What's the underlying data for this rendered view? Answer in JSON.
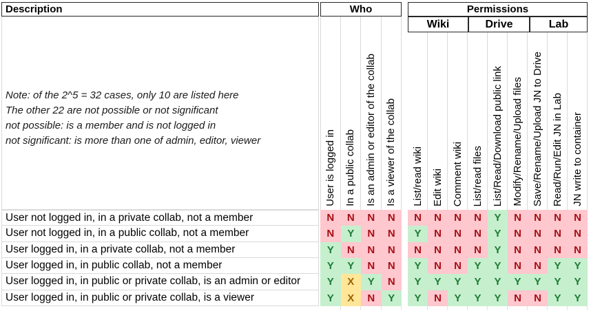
{
  "headers": {
    "description": "Description",
    "who": "Who",
    "permissions": "Permissions",
    "who_columns": [
      "User is logged in",
      "In a public collab",
      "Is an admin or editor of the collab",
      "Is a viewer of the collab"
    ],
    "groups": [
      {
        "label": "Wiki",
        "columns": [
          "List/read wiki",
          "Edit wiki",
          "Comment wiki"
        ]
      },
      {
        "label": "Drive",
        "columns": [
          "List/read files",
          "List/Read/Download public link",
          "Modify/Rename/Upload files"
        ]
      },
      {
        "label": "Lab",
        "columns": [
          "Save/Rename/Upload JN to Drive",
          "Read/Run/Edit JN in Lab",
          "JN write to container"
        ]
      }
    ]
  },
  "note_lines": [
    "Note: of the 2^5 = 32 cases, only 10 are listed here",
    "The other 22 are not possible or not significant",
    "not possible: is a member and is not logged in",
    "not significant: is more than one of admin, editor, viewer"
  ],
  "rows": [
    {
      "description": "User not logged in, in a private collab, not a member",
      "who": [
        "N",
        "N",
        "N",
        "N"
      ],
      "permissions": [
        "N",
        "N",
        "N",
        "N",
        "Y",
        "N",
        "N",
        "N",
        "N"
      ]
    },
    {
      "description": "User not logged in, in a public collab, not a member",
      "who": [
        "N",
        "Y",
        "N",
        "N"
      ],
      "permissions": [
        "Y",
        "N",
        "N",
        "N",
        "Y",
        "N",
        "N",
        "N",
        "N"
      ]
    },
    {
      "description": "User logged in, in a private collab, not a member",
      "who": [
        "Y",
        "N",
        "N",
        "N"
      ],
      "permissions": [
        "N",
        "N",
        "N",
        "N",
        "Y",
        "N",
        "N",
        "N",
        "N"
      ]
    },
    {
      "description": "User logged in, in public collab, not a member",
      "who": [
        "Y",
        "Y",
        "N",
        "N"
      ],
      "permissions": [
        "Y",
        "N",
        "N",
        "Y",
        "Y",
        "N",
        "N",
        "Y",
        "Y"
      ]
    },
    {
      "description": "User logged in, in public or private collab, is an admin or editor",
      "who": [
        "Y",
        "X",
        "Y",
        "N"
      ],
      "permissions": [
        "Y",
        "Y",
        "Y",
        "Y",
        "Y",
        "Y",
        "Y",
        "Y",
        "Y"
      ]
    },
    {
      "description": "User logged in, in public or private collab, is a viewer",
      "who": [
        "Y",
        "X",
        "N",
        "Y"
      ],
      "permissions": [
        "Y",
        "N",
        "Y",
        "Y",
        "Y",
        "N",
        "N",
        "Y",
        "Y"
      ]
    }
  ],
  "colors": {
    "yes_bg": "#C6EFCE",
    "yes_text": "#1E7B34",
    "no_bg": "#FFC7CE",
    "no_text": "#A50E15",
    "mixed_bg": "#FFE699",
    "mixed_text": "#9C6500"
  }
}
